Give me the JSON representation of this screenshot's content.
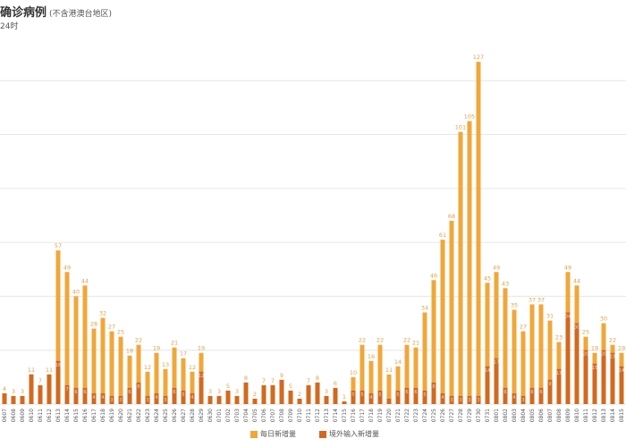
{
  "title": "确诊病例",
  "title_note": "(不含港澳台地区)",
  "subtitle": "24时",
  "colors": {
    "total": "#F0A73A",
    "imported": "#D2691E",
    "grid": "#e6e6e6",
    "label": "#E0A050"
  },
  "chart_data": {
    "type": "bar",
    "title": "确诊病例",
    "ylim": [
      0,
      135
    ],
    "grid": true,
    "legend_position": "bottom",
    "categories": [
      "0607",
      "0608",
      "0609",
      "0610",
      "0611",
      "0612",
      "0613",
      "0614",
      "0615",
      "0616",
      "0617",
      "0618",
      "0619",
      "0620",
      "0621",
      "0622",
      "0623",
      "0624",
      "0625",
      "0626",
      "0627",
      "0628",
      "0629",
      "0630",
      "0701",
      "0702",
      "0703",
      "0704",
      "0705",
      "0706",
      "0707",
      "0708",
      "0709",
      "0710",
      "0711",
      "0712",
      "0713",
      "0714",
      "0715",
      "0716",
      "0717",
      "0718",
      "0719",
      "0720",
      "0721",
      "0722",
      "0723",
      "0724",
      "0725",
      "0726",
      "0727",
      "0728",
      "0729",
      "0730",
      "0731",
      "0801",
      "0802",
      "0803",
      "0804",
      "0805",
      "0806",
      "0807",
      "0808",
      "0809",
      "0810",
      "0811",
      "0812",
      "0813",
      "0814",
      "0815"
    ],
    "series": [
      {
        "name": "每日新增量",
        "values": [
          4,
          3,
          3,
          11,
          7,
          11,
          57,
          49,
          40,
          44,
          28,
          32,
          27,
          25,
          18,
          22,
          12,
          19,
          13,
          21,
          17,
          12,
          19,
          3,
          3,
          5,
          3,
          8,
          2,
          7,
          7,
          9,
          5,
          2,
          7,
          8,
          3,
          6,
          1,
          10,
          22,
          16,
          22,
          11,
          14,
          22,
          21,
          34,
          46,
          61,
          68,
          101,
          105,
          127,
          45,
          49,
          43,
          35,
          27,
          37,
          37,
          31,
          23,
          49,
          44,
          25,
          19,
          30,
          22,
          19
        ]
      },
      {
        "name": "境外输入新增量",
        "values": [
          4,
          3,
          3,
          11,
          7,
          11,
          16,
          7,
          6,
          6,
          4,
          4,
          3,
          3,
          6,
          8,
          3,
          4,
          3,
          6,
          5,
          4,
          12,
          3,
          3,
          5,
          3,
          8,
          2,
          7,
          7,
          9,
          5,
          2,
          7,
          8,
          3,
          6,
          1,
          5,
          5,
          4,
          5,
          2,
          5,
          6,
          6,
          5,
          8,
          4,
          3,
          3,
          3,
          3,
          14,
          17,
          6,
          4,
          3,
          6,
          6,
          9,
          13,
          34,
          30,
          20,
          15,
          20,
          19,
          14
        ]
      }
    ]
  }
}
